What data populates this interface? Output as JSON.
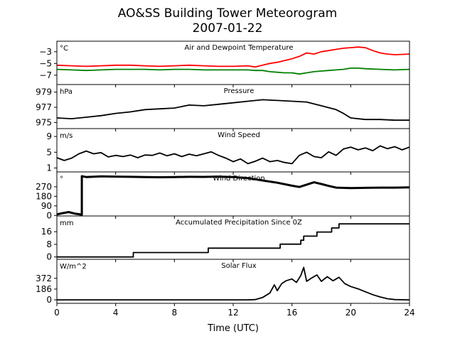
{
  "figure": {
    "title": "AO&SS Building Tower Meteorogram",
    "subtitle": "2007-01-22",
    "xlabel": "Time (UTC)"
  },
  "chart_data": {
    "type": "line",
    "x_unit_hours": true,
    "xlim": [
      0,
      24
    ],
    "xticks": [
      0,
      4,
      8,
      12,
      16,
      20,
      24
    ],
    "panels": [
      {
        "id": "temperature",
        "title": "Air and Dewpoint Temperature",
        "unit": "°C",
        "ylim": [
          -8.6,
          -1.2
        ],
        "yticks": [
          -3,
          -5,
          -7
        ],
        "series": [
          {
            "name": "Air Temperature",
            "color": "#ff0000",
            "points": [
              [
                0,
                -5.3
              ],
              [
                1,
                -5.4
              ],
              [
                2,
                -5.5
              ],
              [
                3,
                -5.4
              ],
              [
                4,
                -5.3
              ],
              [
                5,
                -5.3
              ],
              [
                6,
                -5.4
              ],
              [
                7,
                -5.5
              ],
              [
                8,
                -5.4
              ],
              [
                9,
                -5.3
              ],
              [
                10,
                -5.4
              ],
              [
                11,
                -5.5
              ],
              [
                12,
                -5.5
              ],
              [
                13,
                -5.4
              ],
              [
                13.5,
                -5.6
              ],
              [
                14,
                -5.3
              ],
              [
                14.5,
                -5.0
              ],
              [
                15,
                -4.8
              ],
              [
                15.5,
                -4.5
              ],
              [
                16,
                -4.2
              ],
              [
                16.5,
                -3.8
              ],
              [
                17,
                -3.2
              ],
              [
                17.5,
                -3.4
              ],
              [
                18,
                -3.0
              ],
              [
                18.5,
                -2.8
              ],
              [
                19,
                -2.6
              ],
              [
                19.5,
                -2.4
              ],
              [
                20,
                -2.3
              ],
              [
                20.5,
                -2.2
              ],
              [
                21,
                -2.3
              ],
              [
                21.5,
                -2.8
              ],
              [
                22,
                -3.2
              ],
              [
                22.5,
                -3.4
              ],
              [
                23,
                -3.5
              ],
              [
                24,
                -3.4
              ]
            ]
          },
          {
            "name": "Dewpoint Temperature",
            "color": "#008000",
            "points": [
              [
                0,
                -6.0
              ],
              [
                1,
                -6.1
              ],
              [
                2,
                -6.2
              ],
              [
                3,
                -6.1
              ],
              [
                4,
                -6.0
              ],
              [
                5,
                -6.0
              ],
              [
                6,
                -6.0
              ],
              [
                7,
                -6.1
              ],
              [
                8,
                -6.0
              ],
              [
                9,
                -6.0
              ],
              [
                10,
                -6.1
              ],
              [
                11,
                -6.1
              ],
              [
                12,
                -6.1
              ],
              [
                13,
                -6.1
              ],
              [
                13.5,
                -6.2
              ],
              [
                14,
                -6.2
              ],
              [
                14.5,
                -6.4
              ],
              [
                15,
                -6.5
              ],
              [
                15.5,
                -6.6
              ],
              [
                16,
                -6.6
              ],
              [
                16.5,
                -6.8
              ],
              [
                17,
                -6.6
              ],
              [
                17.5,
                -6.4
              ],
              [
                18,
                -6.3
              ],
              [
                18.5,
                -6.2
              ],
              [
                19,
                -6.1
              ],
              [
                19.5,
                -6.0
              ],
              [
                20,
                -5.8
              ],
              [
                20.5,
                -5.8
              ],
              [
                21,
                -5.9
              ],
              [
                22,
                -6.0
              ],
              [
                23,
                -6.1
              ],
              [
                24,
                -6.0
              ]
            ]
          }
        ]
      },
      {
        "id": "pressure",
        "title": "Pressure",
        "unit": "hPa",
        "ylim": [
          974.2,
          980.0
        ],
        "yticks": [
          979,
          977,
          975
        ],
        "series": [
          {
            "name": "Pressure",
            "color": "#000000",
            "points": [
              [
                0,
                975.6
              ],
              [
                1,
                975.5
              ],
              [
                2,
                975.7
              ],
              [
                3,
                975.9
              ],
              [
                4,
                976.2
              ],
              [
                5,
                976.4
              ],
              [
                6,
                976.7
              ],
              [
                7,
                976.8
              ],
              [
                8,
                976.9
              ],
              [
                9,
                977.3
              ],
              [
                10,
                977.2
              ],
              [
                11,
                977.4
              ],
              [
                12,
                977.6
              ],
              [
                13,
                977.8
              ],
              [
                14,
                978.0
              ],
              [
                15,
                977.9
              ],
              [
                16,
                977.8
              ],
              [
                17,
                977.7
              ],
              [
                18,
                977.2
              ],
              [
                19,
                976.7
              ],
              [
                19.5,
                976.2
              ],
              [
                20,
                975.6
              ],
              [
                21,
                975.4
              ],
              [
                22,
                975.4
              ],
              [
                23,
                975.3
              ],
              [
                24,
                975.3
              ]
            ]
          }
        ]
      },
      {
        "id": "wind-speed",
        "title": "Wind Speed",
        "unit": "m/s",
        "ylim": [
          0,
          11
        ],
        "yticks": [
          9,
          5,
          1
        ],
        "series": [
          {
            "name": "Wind Speed",
            "color": "#000000",
            "points": [
              [
                0,
                3.6
              ],
              [
                0.5,
                2.9
              ],
              [
                1,
                3.5
              ],
              [
                1.5,
                4.6
              ],
              [
                2,
                5.3
              ],
              [
                2.5,
                4.6
              ],
              [
                3,
                4.9
              ],
              [
                3.5,
                3.8
              ],
              [
                4,
                4.2
              ],
              [
                4.5,
                3.9
              ],
              [
                5,
                4.3
              ],
              [
                5.5,
                3.6
              ],
              [
                6,
                4.3
              ],
              [
                6.5,
                4.2
              ],
              [
                7,
                4.8
              ],
              [
                7.5,
                4.1
              ],
              [
                8,
                4.6
              ],
              [
                8.5,
                3.9
              ],
              [
                9,
                4.5
              ],
              [
                9.5,
                4.1
              ],
              [
                10,
                4.6
              ],
              [
                10.5,
                5.1
              ],
              [
                11,
                4.2
              ],
              [
                11.5,
                3.5
              ],
              [
                12,
                2.6
              ],
              [
                12.5,
                3.3
              ],
              [
                13,
                2.1
              ],
              [
                13.5,
                2.7
              ],
              [
                14,
                3.5
              ],
              [
                14.5,
                2.6
              ],
              [
                15,
                2.9
              ],
              [
                15.5,
                2.4
              ],
              [
                16,
                2.1
              ],
              [
                16.5,
                4.2
              ],
              [
                17,
                5.0
              ],
              [
                17.5,
                3.9
              ],
              [
                18,
                3.6
              ],
              [
                18.5,
                5.1
              ],
              [
                19,
                4.2
              ],
              [
                19.5,
                5.8
              ],
              [
                20,
                6.3
              ],
              [
                20.5,
                5.6
              ],
              [
                21,
                6.1
              ],
              [
                21.5,
                5.4
              ],
              [
                22,
                6.6
              ],
              [
                22.5,
                5.9
              ],
              [
                23,
                6.4
              ],
              [
                23.5,
                5.6
              ],
              [
                24,
                6.3
              ]
            ]
          }
        ]
      },
      {
        "id": "wind-direction",
        "title": "Wind Direction",
        "unit": "°",
        "ylim": [
          -5,
          410
        ],
        "yticks": [
          270,
          180,
          90,
          0
        ],
        "series": [
          {
            "name": "Wind Direction",
            "color": "#000000",
            "points": [
              [
                0,
                10
              ],
              [
                0.4,
                22
              ],
              [
                0.8,
                32
              ],
              [
                1.2,
                18
              ],
              [
                1.7,
                8
              ],
              [
                1.7,
                370
              ],
              [
                2,
                362
              ],
              [
                3,
                368
              ],
              [
                4,
                366
              ],
              [
                5,
                364
              ],
              [
                6,
                361
              ],
              [
                7,
                360
              ],
              [
                8,
                362
              ],
              [
                9,
                364
              ],
              [
                10,
                363
              ],
              [
                11,
                366
              ],
              [
                12,
                362
              ],
              [
                13,
                352
              ],
              [
                14,
                330
              ],
              [
                15,
                308
              ],
              [
                16,
                280
              ],
              [
                16.5,
                268
              ],
              [
                17,
                290
              ],
              [
                17.5,
                312
              ],
              [
                18,
                296
              ],
              [
                18.5,
                278
              ],
              [
                19,
                262
              ],
              [
                20,
                258
              ],
              [
                21,
                260
              ],
              [
                22,
                262
              ],
              [
                23,
                262
              ],
              [
                24,
                264
              ]
            ]
          }
        ]
      },
      {
        "id": "precipitation",
        "title": "Accumulated Precipitation Since 0Z",
        "unit": "mm",
        "ylim": [
          -1.5,
          26
        ],
        "yticks": [
          16,
          8,
          0
        ],
        "series": [
          {
            "name": "Accumulated Precipitation",
            "color": "#000000",
            "points": [
              [
                0,
                0
              ],
              [
                5.2,
                0
              ],
              [
                5.2,
                2.8
              ],
              [
                10.3,
                2.8
              ],
              [
                10.3,
                5.6
              ],
              [
                15.2,
                5.6
              ],
              [
                15.2,
                8.1
              ],
              [
                16.6,
                8.1
              ],
              [
                16.6,
                10.6
              ],
              [
                16.8,
                10.6
              ],
              [
                16.8,
                13.2
              ],
              [
                17.7,
                13.2
              ],
              [
                17.7,
                15.8
              ],
              [
                18.7,
                15.8
              ],
              [
                18.7,
                18.4
              ],
              [
                19.2,
                18.4
              ],
              [
                19.2,
                21.0
              ],
              [
                24,
                21.0
              ]
            ]
          }
        ]
      },
      {
        "id": "solar-flux",
        "title": "Solar Flux",
        "unit": "W/m^2",
        "ylim": [
          -60,
          700
        ],
        "yticks": [
          372,
          186,
          0
        ],
        "series": [
          {
            "name": "Solar Flux",
            "color": "#000000",
            "points": [
              [
                0,
                0
              ],
              [
                13,
                0
              ],
              [
                13.5,
                5
              ],
              [
                14,
                40
              ],
              [
                14.5,
                120
              ],
              [
                14.8,
                260
              ],
              [
                15,
                160
              ],
              [
                15.3,
                280
              ],
              [
                15.6,
                330
              ],
              [
                16,
                360
              ],
              [
                16.3,
                300
              ],
              [
                16.6,
                420
              ],
              [
                16.8,
                560
              ],
              [
                17,
                320
              ],
              [
                17.3,
                370
              ],
              [
                17.7,
                430
              ],
              [
                18,
                320
              ],
              [
                18.4,
                400
              ],
              [
                18.8,
                330
              ],
              [
                19.2,
                390
              ],
              [
                19.6,
                280
              ],
              [
                20,
                230
              ],
              [
                20.5,
                190
              ],
              [
                21,
                140
              ],
              [
                21.5,
                90
              ],
              [
                22,
                50
              ],
              [
                22.5,
                20
              ],
              [
                23,
                5
              ],
              [
                24,
                0
              ]
            ]
          }
        ]
      }
    ]
  }
}
